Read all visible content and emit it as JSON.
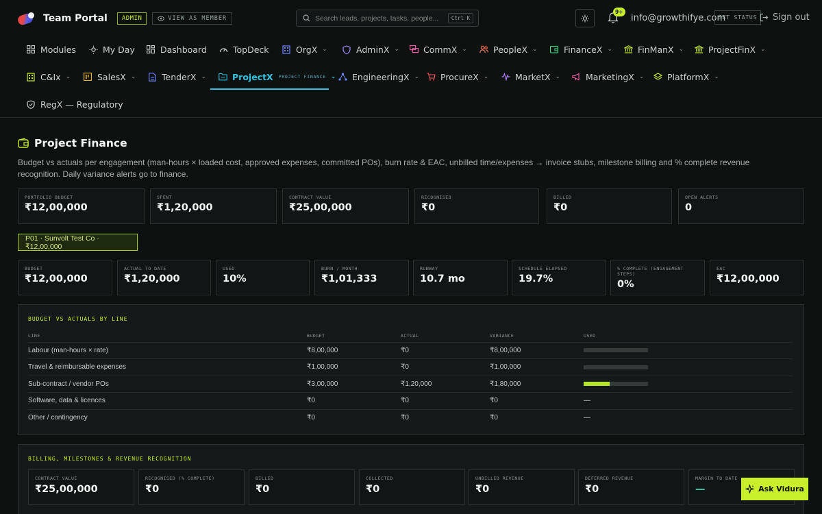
{
  "app": {
    "name": "Team Portal",
    "role_badge": "ADMIN",
    "view_as": "VIEW AS MEMBER"
  },
  "search": {
    "placeholder": "Search leads, projects, tasks, people...",
    "shortcut": "Ctrl K"
  },
  "header": {
    "notifications_count": "9+",
    "user_email": "info@growthifye.com",
    "set_status": "SET STATUS",
    "sign_out": "Sign out"
  },
  "nav": {
    "row1": [
      {
        "label": "Modules",
        "icon": "grid-icon",
        "dropdown": false
      },
      {
        "label": "My Day",
        "icon": "sun-icon",
        "dropdown": false
      },
      {
        "label": "Dashboard",
        "icon": "dashboard-icon",
        "dropdown": false
      },
      {
        "label": "TopDeck",
        "icon": "gauge-icon",
        "dropdown": false
      },
      {
        "label": "OrgX",
        "icon": "building-icon",
        "dropdown": true
      },
      {
        "label": "AdminX",
        "icon": "shield-icon",
        "dropdown": true
      },
      {
        "label": "CommX",
        "icon": "chat-icon",
        "dropdown": true
      },
      {
        "label": "PeopleX",
        "icon": "people-icon",
        "dropdown": true
      },
      {
        "label": "FinanceX",
        "icon": "wallet-icon",
        "dropdown": true
      },
      {
        "label": "FinManX",
        "icon": "bank-icon",
        "dropdown": true
      },
      {
        "label": "ProjectFinX",
        "icon": "bank-icon",
        "dropdown": true
      }
    ],
    "row2": [
      {
        "label": "C&Ix",
        "icon": "building-icon",
        "dropdown": true
      },
      {
        "label": "SalesX",
        "icon": "briefcase-icon",
        "dropdown": true
      },
      {
        "label": "TenderX",
        "icon": "document-icon",
        "dropdown": true
      },
      {
        "label": "ProjectX",
        "icon": "folder-icon",
        "dropdown": true,
        "sub": "PROJECT FINANCE"
      },
      {
        "label": "EngineeringX",
        "icon": "network-icon",
        "dropdown": true
      },
      {
        "label": "ProcureX",
        "icon": "cart-icon",
        "dropdown": true
      },
      {
        "label": "MarketX",
        "icon": "pulse-icon",
        "dropdown": true
      },
      {
        "label": "MarketingX",
        "icon": "megaphone-icon",
        "dropdown": true
      },
      {
        "label": "PlatformX",
        "icon": "layers-icon",
        "dropdown": true
      }
    ],
    "row3": [
      {
        "label": "RegX — Regulatory",
        "icon": "shield-icon",
        "dropdown": false
      }
    ]
  },
  "page": {
    "title": "Project Finance",
    "description": "Budget vs actuals per engagement (man-hours × loaded cost, approved expenses, committed POs), burn rate & EAC, unbilled time/expenses → invoice stubs, milestone billing and % complete revenue recognition. Daily variance alerts go to finance."
  },
  "portfolio_kpis": [
    {
      "label": "PORTFOLIO BUDGET",
      "value": "₹12,00,000"
    },
    {
      "label": "SPENT",
      "value": "₹1,20,000"
    },
    {
      "label": "CONTRACT VALUE",
      "value": "₹25,00,000"
    },
    {
      "label": "RECOGNISED",
      "value": "₹0"
    },
    {
      "label": "BILLED",
      "value": "₹0"
    },
    {
      "label": "OPEN ALERTS",
      "value": "0"
    }
  ],
  "project_selector": {
    "selected": "P01 · Sunvolt Test Co · ₹12,00,000"
  },
  "project_kpis": [
    {
      "label": "BUDGET",
      "value": "₹12,00,000"
    },
    {
      "label": "ACTUAL TO DATE",
      "value": "₹1,20,000"
    },
    {
      "label": "USED",
      "value": "10%"
    },
    {
      "label": "BURN / MONTH",
      "value": "₹1,01,333"
    },
    {
      "label": "RUNWAY",
      "value": "10.7 mo"
    },
    {
      "label": "SCHEDULE ELAPSED",
      "value": "19.7%"
    },
    {
      "label": "% COMPLETE (ENGAGEMENT STEPS)",
      "value": "0%"
    },
    {
      "label": "EAC",
      "value": "₹12,00,000"
    }
  ],
  "budget_table": {
    "title": "BUDGET VS ACTUALS BY LINE",
    "headers": [
      "LINE",
      "BUDGET",
      "ACTUAL",
      "VARIANCE",
      "USED"
    ],
    "rows": [
      {
        "line": "Labour (man-hours × rate)",
        "budget": "₹8,00,000",
        "actual": "₹0",
        "variance": "₹8,00,000",
        "used": 0,
        "used_text": ""
      },
      {
        "line": "Travel & reimbursable expenses",
        "budget": "₹1,00,000",
        "actual": "₹0",
        "variance": "₹1,00,000",
        "used": 0,
        "used_text": ""
      },
      {
        "line": "Sub-contract / vendor POs",
        "budget": "₹3,00,000",
        "actual": "₹1,20,000",
        "variance": "₹1,80,000",
        "used": 0.4,
        "used_text": ""
      },
      {
        "line": "Software, data & licences",
        "budget": "₹0",
        "actual": "₹0",
        "variance": "₹0",
        "used": null,
        "used_text": "—"
      },
      {
        "line": "Other / contingency",
        "budget": "₹0",
        "actual": "₹0",
        "variance": "₹0",
        "used": null,
        "used_text": "—"
      }
    ]
  },
  "billing": {
    "title": "BILLING, MILESTONES & REVENUE RECOGNITION",
    "cards": [
      {
        "label": "CONTRACT VALUE",
        "value": "₹25,00,000"
      },
      {
        "label": "RECOGNISED (% COMPLETE)",
        "value": "₹0"
      },
      {
        "label": "BILLED",
        "value": "₹0"
      },
      {
        "label": "COLLECTED",
        "value": "₹0"
      },
      {
        "label": "UNBILLED REVENUE",
        "value": "₹0"
      },
      {
        "label": "DEFERRED REVENUE",
        "value": "₹0"
      },
      {
        "label": "MARGIN TO DATE",
        "value": "—"
      }
    ]
  },
  "assistant": {
    "label": "Ask Vidura"
  },
  "colors": {
    "accent_lime": "#c7f02a",
    "accent_cyan": "#35c2e0",
    "background": "#0d1211"
  }
}
